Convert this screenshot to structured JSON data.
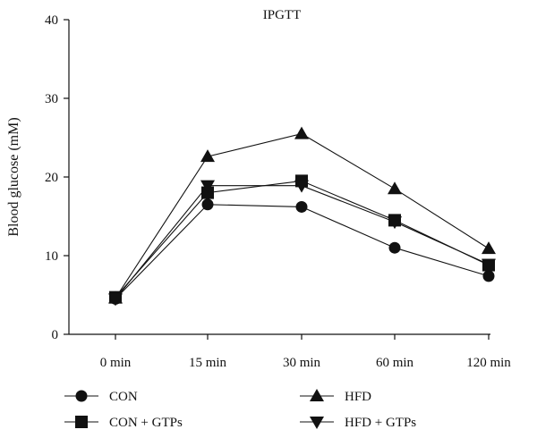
{
  "chart_data": {
    "type": "line",
    "title": "IPGTT",
    "ylabel": "Blood glucose (mM)",
    "xlabel": "",
    "categories": [
      "0 min",
      "15 min",
      "30 min",
      "60 min",
      "120 min"
    ],
    "ylim": [
      0,
      40
    ],
    "yticks": [
      0,
      10,
      20,
      30,
      40
    ],
    "grid": false,
    "legend_position": "bottom",
    "series": [
      {
        "name": "CON",
        "marker": "circle",
        "values": [
          4.5,
          16.5,
          16.2,
          11.0,
          7.4
        ]
      },
      {
        "name": "HFD",
        "marker": "triangle-up",
        "values": [
          4.6,
          22.6,
          25.5,
          18.5,
          10.9
        ]
      },
      {
        "name": "CON + GTPs",
        "marker": "square",
        "values": [
          4.7,
          18.0,
          19.5,
          14.5,
          8.8
        ]
      },
      {
        "name": "HFD + GTPs",
        "marker": "triangle-down",
        "values": [
          4.5,
          18.9,
          18.9,
          14.3,
          8.9
        ]
      }
    ],
    "color": "#111111"
  }
}
